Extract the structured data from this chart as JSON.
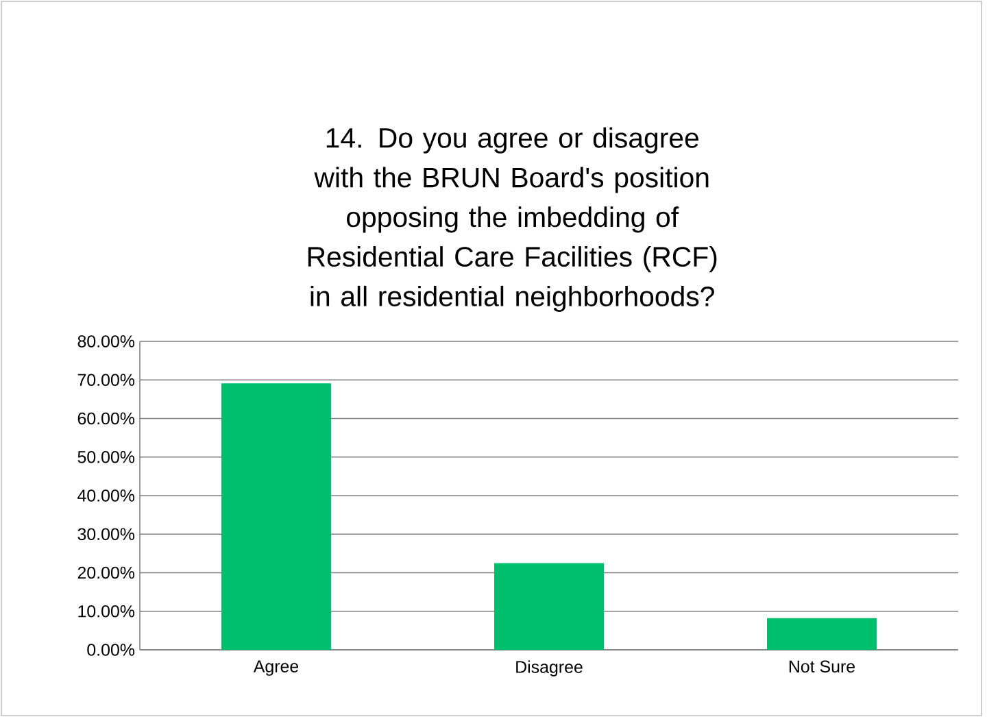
{
  "chart_data": {
    "type": "bar",
    "title": "14. Do you agree or disagree with the BRUN Board's position opposing the imbedding of Residential Care Facilities (RCF) in all residential neighborhoods?",
    "categories": [
      "Agree",
      "Disagree",
      "Not Sure"
    ],
    "values": [
      69.1,
      22.5,
      8.2
    ],
    "color": "#00bf6f",
    "ylim": [
      0,
      80
    ],
    "yticks": [
      {
        "value": 0,
        "label": "0.00%"
      },
      {
        "value": 10,
        "label": "10.00%"
      },
      {
        "value": 20,
        "label": "20.00%"
      },
      {
        "value": 30,
        "label": "30.00%"
      },
      {
        "value": 40,
        "label": "40.00%"
      },
      {
        "value": 50,
        "label": "50.00%"
      },
      {
        "value": 60,
        "label": "60.00%"
      },
      {
        "value": 70,
        "label": "70.00%"
      },
      {
        "value": 80,
        "label": "80.00%"
      }
    ],
    "grid": "y"
  }
}
